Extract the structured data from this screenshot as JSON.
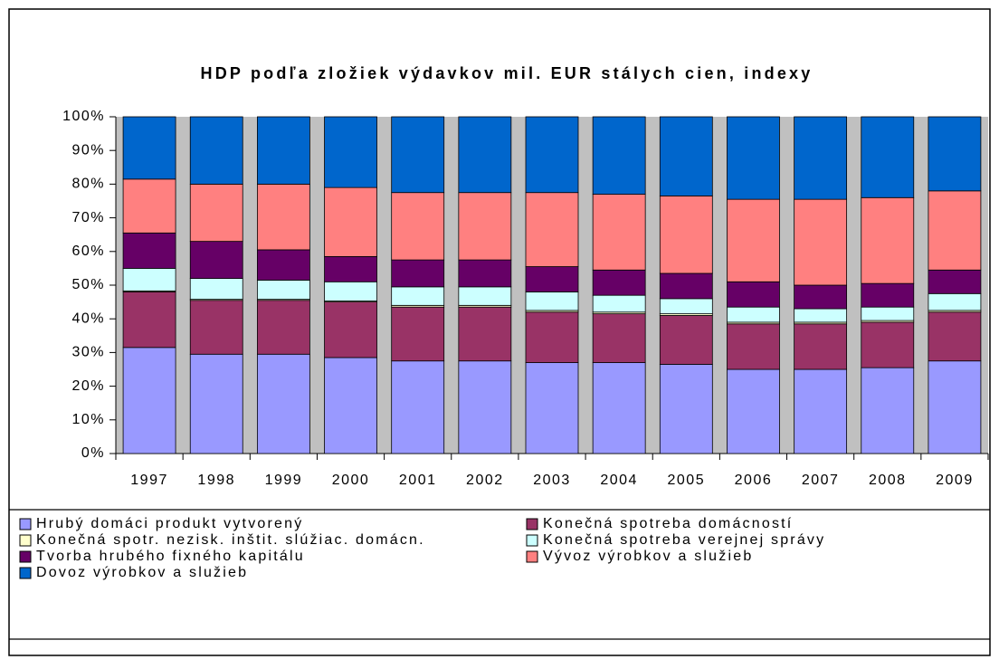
{
  "chart_data": {
    "type": "bar",
    "stacked": true,
    "title": "HDP podľa zložiek výdavkov mil. EUR stálych cien, indexy",
    "categories": [
      "1997",
      "1998",
      "1999",
      "2000",
      "2001",
      "2002",
      "2003",
      "2004",
      "2005",
      "2006",
      "2007",
      "2008",
      "2009"
    ],
    "ylim": [
      0,
      100
    ],
    "yticks": [
      {
        "value": 0,
        "label": "0%"
      },
      {
        "value": 10,
        "label": "10%"
      },
      {
        "value": 20,
        "label": "20%"
      },
      {
        "value": 30,
        "label": "30%"
      },
      {
        "value": 40,
        "label": "40%"
      },
      {
        "value": 50,
        "label": "50%"
      },
      {
        "value": 60,
        "label": "60%"
      },
      {
        "value": 70,
        "label": "70%"
      },
      {
        "value": 80,
        "label": "80%"
      },
      {
        "value": 90,
        "label": "90%"
      },
      {
        "value": 100,
        "label": "100%"
      }
    ],
    "grid": false,
    "legend": "bottom",
    "series": [
      {
        "name": "Hrubý domáci produkt vytvorený",
        "color": "#9999ff",
        "values": [
          31.5,
          29.5,
          29.5,
          28.5,
          27.5,
          27.5,
          27,
          27,
          26.5,
          25,
          25,
          25.5,
          27.5
        ]
      },
      {
        "name": "Konečná spotreba domácností",
        "color": "#993366",
        "values": [
          16.5,
          16,
          16,
          16.5,
          16,
          16,
          15,
          14.5,
          14.5,
          13.5,
          13.5,
          13.5,
          14.5
        ]
      },
      {
        "name": "Konečná spotr. nezisk. inštit. slúžiac. domácn.",
        "color": "#ffffcc",
        "values": [
          0.3,
          0.3,
          0.3,
          0.3,
          0.5,
          0.5,
          0.5,
          0.5,
          0.5,
          0.5,
          0.5,
          0.5,
          0.5
        ]
      },
      {
        "name": "Konečná spotreba verejnej správy",
        "color": "#ccffff",
        "values": [
          6.7,
          6.2,
          5.7,
          5.7,
          5.5,
          5.5,
          5.5,
          5,
          4.5,
          4.5,
          4,
          4,
          5
        ]
      },
      {
        "name": "Tvorba hrubého fixného kapitálu",
        "color": "#660066",
        "values": [
          10.5,
          11,
          9,
          7.5,
          8,
          8,
          7.5,
          7.5,
          7.5,
          7.5,
          7,
          7,
          7
        ]
      },
      {
        "name": "Vývoz výrobkov a služieb",
        "color": "#ff8080",
        "values": [
          16,
          17,
          19.5,
          20.5,
          20,
          20,
          22,
          22.5,
          23,
          24.5,
          25.5,
          25.5,
          23.5
        ]
      },
      {
        "name": "Dovoz výrobkov a služieb",
        "color": "#0066cc",
        "values": [
          18.5,
          20,
          20,
          21,
          22.5,
          22.5,
          22.5,
          23,
          23.5,
          24.5,
          24.5,
          24,
          22
        ]
      }
    ]
  }
}
